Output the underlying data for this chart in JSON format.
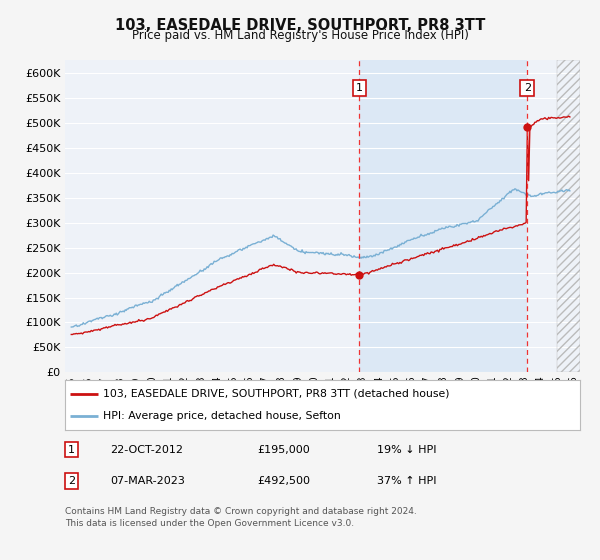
{
  "title": "103, EASEDALE DRIVE, SOUTHPORT, PR8 3TT",
  "subtitle": "Price paid vs. HM Land Registry's House Price Index (HPI)",
  "background_color": "#f5f5f5",
  "plot_bg_color": "#eef2f8",
  "highlight_color": "#dce8f5",
  "grid_color": "#cccccc",
  "hpi_color": "#7ab0d4",
  "price_color": "#cc1111",
  "ylim": [
    0,
    625000
  ],
  "yticks": [
    0,
    50000,
    100000,
    150000,
    200000,
    250000,
    300000,
    350000,
    400000,
    450000,
    500000,
    550000,
    600000
  ],
  "xlim_start": 1994.6,
  "xlim_end": 2026.4,
  "ann1_x": 2012.8,
  "ann1_y": 195000,
  "ann2_x": 2023.17,
  "ann2_y": 492500,
  "legend1": "103, EASEDALE DRIVE, SOUTHPORT, PR8 3TT (detached house)",
  "legend2": "HPI: Average price, detached house, Sefton",
  "note1_num": "1",
  "note1_date": "22-OCT-2012",
  "note1_price": "£195,000",
  "note1_hpi": "19% ↓ HPI",
  "note2_num": "2",
  "note2_date": "07-MAR-2023",
  "note2_price": "£492,500",
  "note2_hpi": "37% ↑ HPI",
  "footer": "Contains HM Land Registry data © Crown copyright and database right 2024.\nThis data is licensed under the Open Government Licence v3.0."
}
